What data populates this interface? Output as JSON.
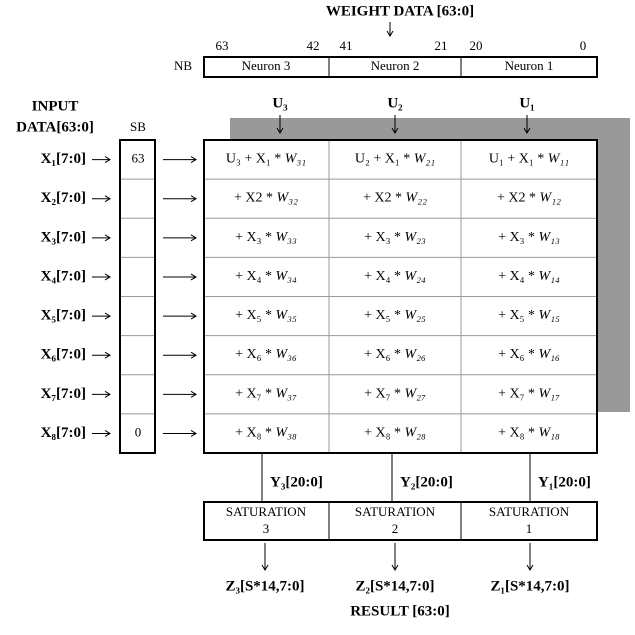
{
  "header": {
    "title": "WEIGHT DATA [63:0]",
    "bits": [
      "63",
      "42",
      "41",
      "21",
      "20",
      "0"
    ],
    "nb_label": "NB",
    "neurons": [
      "Neuron 3",
      "Neuron 2",
      "Neuron 1"
    ]
  },
  "input": {
    "title_lines": [
      "INPUT",
      "DATA[63:0]"
    ],
    "sb_label": "SB",
    "rows": [
      "X₁[7:0]",
      "X₂[7:0]",
      "X₃[7:0]",
      "X₄[7:0]",
      "X₅[7:0]",
      "X₆[7:0]",
      "X₇[7:0]",
      "X₈[7:0]"
    ],
    "sb_values": [
      "63",
      null,
      null,
      null,
      null,
      null,
      null,
      "0"
    ]
  },
  "u_labels": [
    "U₃",
    "U₂",
    "U₁"
  ],
  "grid": {
    "rows": [
      [
        {
          "term": "U₃ + X₁ * ",
          "weight": "W₃₁"
        },
        {
          "term": "U₂ + X₁ * ",
          "weight": "W₂₁"
        },
        {
          "term": "U₁ + X₁ * ",
          "weight": "W₁₁"
        }
      ],
      [
        {
          "term": "+ X2 * ",
          "weight": "W₃₂"
        },
        {
          "term": "+ X2 * ",
          "weight": "W₂₂"
        },
        {
          "term": "+ X2 * ",
          "weight": "W₁₂"
        }
      ],
      [
        {
          "term": "+ X₃ * ",
          "weight": "W₃₃"
        },
        {
          "term": "+ X₃ * ",
          "weight": "W₂₃"
        },
        {
          "term": "+ X₃ * ",
          "weight": "W₁₃"
        }
      ],
      [
        {
          "term": "+ X₄ * ",
          "weight": "W₃₄"
        },
        {
          "term": "+ X₄ * ",
          "weight": "W₂₄"
        },
        {
          "term": "+ X₄ * ",
          "weight": "W₁₄"
        }
      ],
      [
        {
          "term": "+ X₅ * ",
          "weight": "W₃₅"
        },
        {
          "term": "+ X₅ * ",
          "weight": "W₂₅"
        },
        {
          "term": "+ X₅ * ",
          "weight": "W₁₅"
        }
      ],
      [
        {
          "term": "+ X₆ * ",
          "weight": "W₃₆"
        },
        {
          "term": "+ X₆ * ",
          "weight": "W₂₆"
        },
        {
          "term": "+ X₆ * ",
          "weight": "W₁₆"
        }
      ],
      [
        {
          "term": "+ X₇ * ",
          "weight": "W₃₇"
        },
        {
          "term": "+ X₇ * ",
          "weight": "W₂₇"
        },
        {
          "term": "+ X₇ * ",
          "weight": "W₁₇"
        }
      ],
      [
        {
          "term": "+ X₈ * ",
          "weight": "W₃₈"
        },
        {
          "term": "+ X₈ * ",
          "weight": "W₂₈"
        },
        {
          "term": "+ X₈ * ",
          "weight": "W₁₈"
        }
      ]
    ]
  },
  "outputs": {
    "y_labels": [
      "Y₃[20:0]",
      "Y₂[20:0]",
      "Y₁[20:0]"
    ],
    "saturation": [
      {
        "title": "SATURATION",
        "index": "3"
      },
      {
        "title": "SATURATION",
        "index": "2"
      },
      {
        "title": "SATURATION",
        "index": "1"
      }
    ],
    "z_labels": [
      "Z₃[S*14,7:0]",
      "Z₂[S*14,7:0]",
      "Z₁[S*14,7:0]"
    ],
    "result": "RESULT [63:0]"
  }
}
